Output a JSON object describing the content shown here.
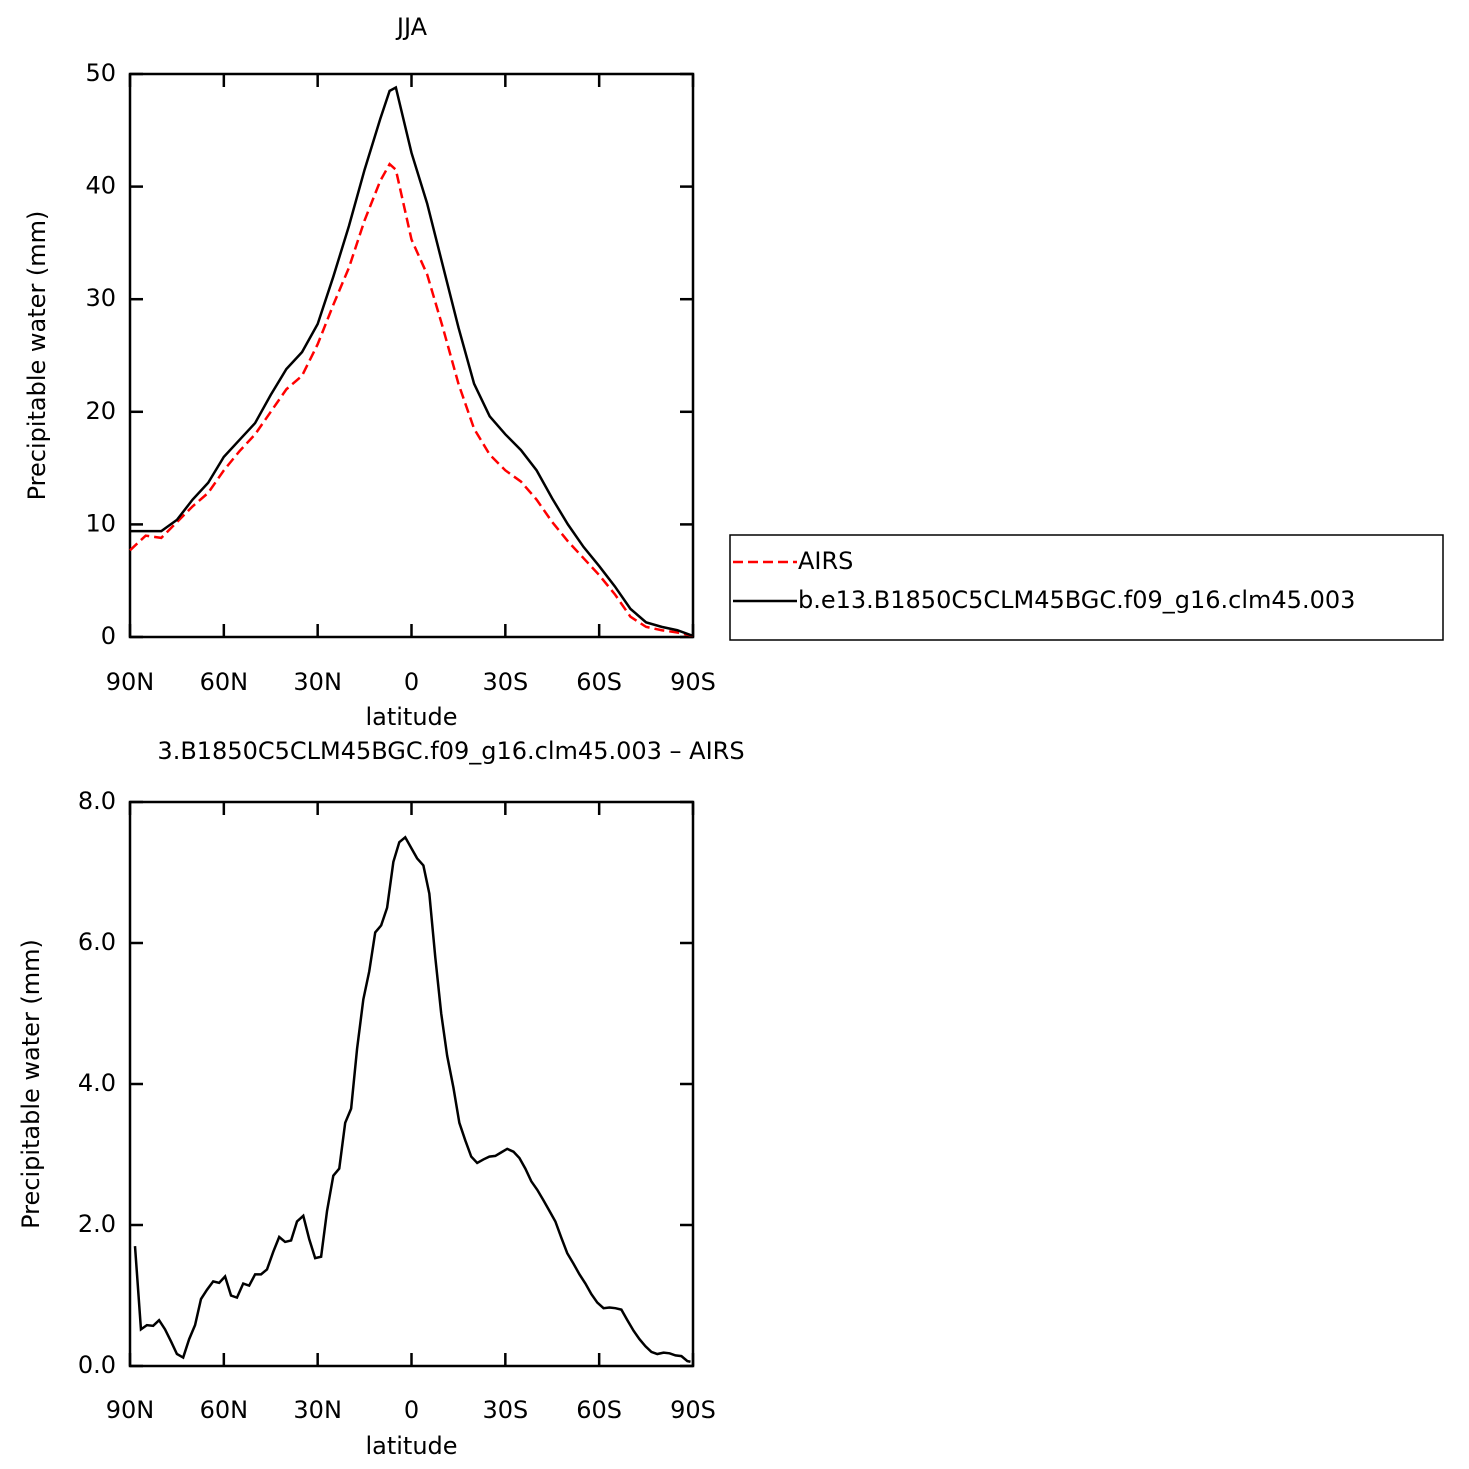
{
  "chart_data": [
    {
      "type": "line",
      "title": "JJA",
      "xlabel": "latitude",
      "ylabel": "Precipitable water (mm)",
      "x": [
        90,
        85,
        80,
        75,
        70,
        65,
        60,
        55,
        50,
        45,
        40,
        35,
        30,
        25,
        20,
        15,
        10,
        7,
        5,
        0,
        -5,
        -10,
        -15,
        -20,
        -25,
        -30,
        -35,
        -40,
        -45,
        -50,
        -55,
        -60,
        -65,
        -70,
        -75,
        -80,
        -85,
        -90
      ],
      "series": [
        {
          "name": "AIRS",
          "color": "#ff0000",
          "dash": "dashed",
          "values": [
            7.7,
            9.0,
            8.8,
            10.2,
            11.6,
            12.8,
            14.8,
            16.5,
            18.0,
            20.0,
            22.0,
            23.2,
            26.0,
            29.5,
            32.8,
            37.0,
            40.5,
            42.0,
            41.5,
            35.3,
            32.2,
            27.5,
            22.5,
            18.5,
            16.2,
            14.8,
            13.8,
            12.2,
            10.2,
            8.5,
            7.0,
            5.5,
            3.8,
            1.8,
            0.9,
            0.6,
            0.4,
            0.1
          ]
        },
        {
          "name": "b.e13.B1850C5CLM45BGC.f09_g16.clm45.003",
          "color": "#000000",
          "dash": "solid",
          "values": [
            9.4,
            9.4,
            9.4,
            10.4,
            12.2,
            13.7,
            16.0,
            17.5,
            19.0,
            21.5,
            23.8,
            25.3,
            27.8,
            32.0,
            36.5,
            41.5,
            46.0,
            48.5,
            48.8,
            43.0,
            38.5,
            33.0,
            27.5,
            22.5,
            19.6,
            18.0,
            16.6,
            14.8,
            12.3,
            10.0,
            8.0,
            6.3,
            4.5,
            2.5,
            1.3,
            0.9,
            0.6,
            0.1
          ]
        }
      ],
      "xlim": [
        90,
        -90
      ],
      "xticks": [
        {
          "value": 90,
          "label": "90N"
        },
        {
          "value": 60,
          "label": "60N"
        },
        {
          "value": 30,
          "label": "30N"
        },
        0,
        {
          "value": -30,
          "label": "30S"
        },
        {
          "value": -60,
          "label": "60S"
        },
        {
          "value": -90,
          "label": "90S"
        }
      ],
      "ylim": [
        0,
        50
      ],
      "yticks": [
        0,
        10,
        20,
        30,
        40,
        50
      ],
      "legend": "right"
    },
    {
      "type": "line",
      "title": "3.B1850C5CLM45BGC.f09_g16.clm45.003 – AIRS",
      "xlabel": "latitude",
      "ylabel": "Precipitable water (mm)",
      "x": [
        88.4,
        86.5,
        84.6,
        82.6,
        80.7,
        78.8,
        76.9,
        75.0,
        73.0,
        71.1,
        69.2,
        67.3,
        65.4,
        63.4,
        61.5,
        59.6,
        57.7,
        55.8,
        53.8,
        51.9,
        50.0,
        48.1,
        46.2,
        44.2,
        42.3,
        40.4,
        38.5,
        36.6,
        34.6,
        32.7,
        30.8,
        28.9,
        27.0,
        25.0,
        23.1,
        21.2,
        19.3,
        17.4,
        15.4,
        13.5,
        11.6,
        9.7,
        7.8,
        5.8,
        3.9,
        2.0,
        0.1,
        -1.8,
        -3.8,
        -5.7,
        -7.6,
        -9.5,
        -11.4,
        -13.4,
        -15.3,
        -17.2,
        -19.1,
        -21.0,
        -23.0,
        -24.9,
        -26.8,
        -28.7,
        -30.6,
        -32.6,
        -34.5,
        -36.4,
        -38.3,
        -40.2,
        -42.2,
        -44.1,
        -46.0,
        -47.9,
        -49.8,
        -51.8,
        -53.7,
        -55.6,
        -57.5,
        -59.4,
        -61.4,
        -63.3,
        -65.2,
        -67.1,
        -69.0,
        -71.0,
        -72.9,
        -74.8,
        -76.7,
        -78.6,
        -80.6,
        -82.5,
        -84.4,
        -86.3,
        -88.2,
        -89.2
      ],
      "values": [
        1.7,
        0.52,
        0.58,
        0.57,
        0.65,
        0.52,
        0.35,
        0.17,
        0.12,
        0.38,
        0.58,
        0.95,
        1.08,
        1.2,
        1.18,
        1.27,
        1.0,
        0.97,
        1.17,
        1.14,
        1.3,
        1.3,
        1.37,
        1.62,
        1.83,
        1.76,
        1.78,
        2.05,
        2.13,
        1.8,
        1.53,
        1.55,
        2.2,
        2.7,
        2.8,
        3.45,
        3.65,
        4.5,
        5.2,
        5.6,
        6.15,
        6.25,
        6.5,
        7.15,
        7.43,
        7.5,
        7.35,
        7.2,
        7.1,
        6.7,
        5.8,
        5.0,
        4.4,
        3.95,
        3.45,
        3.2,
        2.97,
        2.88,
        2.93,
        2.97,
        2.98,
        3.03,
        3.08,
        3.04,
        2.95,
        2.8,
        2.62,
        2.5,
        2.35,
        2.2,
        2.05,
        1.82,
        1.6,
        1.45,
        1.3,
        1.17,
        1.02,
        0.9,
        0.82,
        0.83,
        0.82,
        0.8,
        0.65,
        0.5,
        0.38,
        0.28,
        0.2,
        0.17,
        0.19,
        0.18,
        0.15,
        0.14,
        0.07,
        0.06
      ],
      "color": "#000000",
      "xlim": [
        90,
        -90
      ],
      "xticks": [
        {
          "value": 90,
          "label": "90N"
        },
        {
          "value": 60,
          "label": "60N"
        },
        {
          "value": 30,
          "label": "30N"
        },
        0,
        {
          "value": -30,
          "label": "30S"
        },
        {
          "value": -60,
          "label": "60S"
        },
        {
          "value": -90,
          "label": "90S"
        }
      ],
      "ylim": [
        0,
        8
      ],
      "yticks": [
        {
          "value": 0,
          "label": "0.0"
        },
        {
          "value": 2,
          "label": "2.0"
        },
        {
          "value": 4,
          "label": "4.0"
        },
        {
          "value": 6,
          "label": "6.0"
        },
        {
          "value": 8,
          "label": "8.0"
        }
      ]
    }
  ]
}
